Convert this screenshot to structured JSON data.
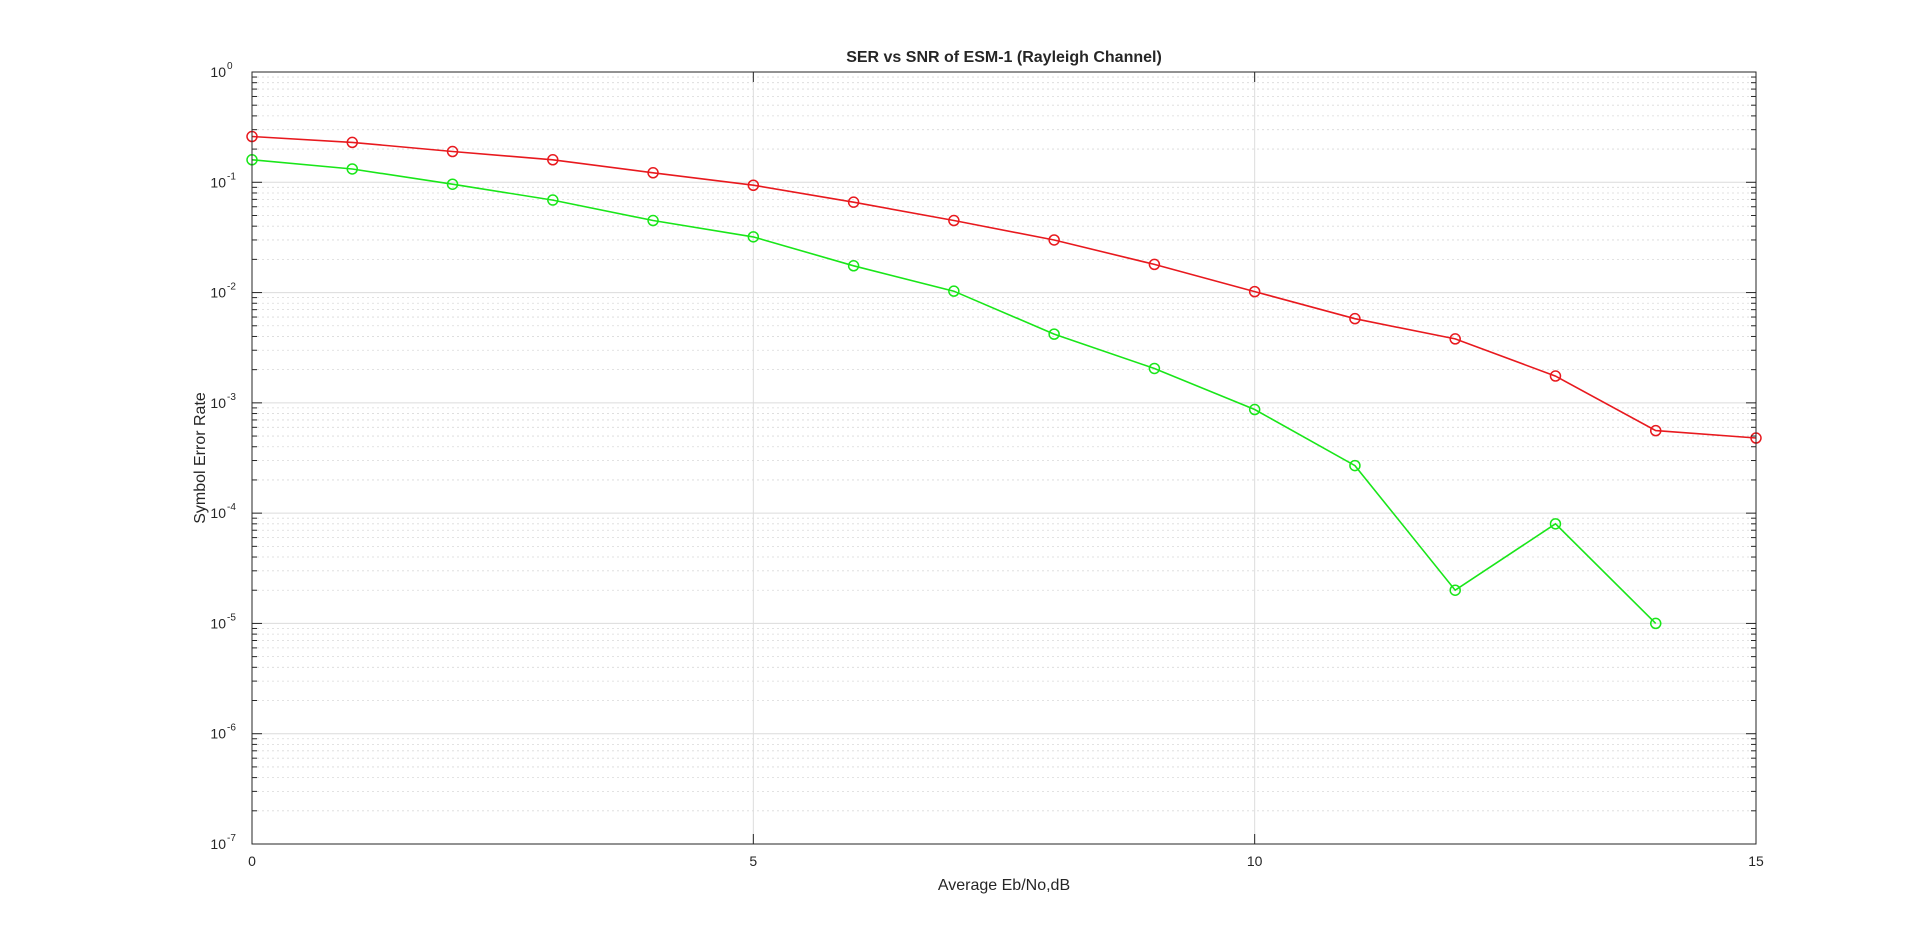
{
  "chart_data": {
    "type": "line",
    "title": "SER vs SNR of ESM-1 (Rayleigh Channel)",
    "xlabel": "Average Eb/No,dB",
    "ylabel": "Symbol Error Rate",
    "xlim": [
      0,
      15
    ],
    "ylim": [
      1e-07,
      1
    ],
    "yscale": "log",
    "grid": true,
    "minor_grid": true,
    "xticks": [
      0,
      5,
      10,
      15
    ],
    "yticks": [
      {
        "base": "10",
        "exp": "-7",
        "value": 1e-07
      },
      {
        "base": "10",
        "exp": "-6",
        "value": 1e-06
      },
      {
        "base": "10",
        "exp": "-5",
        "value": 1e-05
      },
      {
        "base": "10",
        "exp": "-4",
        "value": 0.0001
      },
      {
        "base": "10",
        "exp": "-3",
        "value": 0.001
      },
      {
        "base": "10",
        "exp": "-2",
        "value": 0.01
      },
      {
        "base": "10",
        "exp": "-1",
        "value": 0.1
      },
      {
        "base": "10",
        "exp": "0",
        "value": 1
      }
    ],
    "series": [
      {
        "color": "#e8191e",
        "marker": "circle",
        "x": [
          0,
          1,
          2,
          3,
          4,
          5,
          6,
          7,
          8,
          9,
          10,
          11,
          12,
          13,
          14,
          15
        ],
        "y": [
          0.26,
          0.23,
          0.19,
          0.16,
          0.122,
          0.094,
          0.066,
          0.045,
          0.03,
          0.018,
          0.0102,
          0.0058,
          0.0038,
          0.00175,
          0.00056,
          0.00048
        ]
      },
      {
        "color": "#19e619",
        "marker": "circle",
        "x": [
          0,
          1,
          2,
          3,
          4,
          5,
          6,
          7,
          8,
          9,
          10,
          11,
          12,
          13,
          14
        ],
        "y": [
          0.16,
          0.132,
          0.096,
          0.069,
          0.045,
          0.032,
          0.0175,
          0.0103,
          0.0042,
          0.00205,
          0.00087,
          0.00027,
          2e-05,
          8e-05,
          1e-05
        ]
      }
    ]
  }
}
